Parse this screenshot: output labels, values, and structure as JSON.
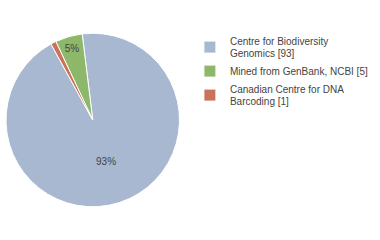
{
  "chart_data": {
    "type": "pie",
    "categories": [
      "Centre for Biodiversity\nGenomics [93]",
      "Mined from GenBank, NCBI [5]",
      "Canadian Centre for DNA\nBarcoding [1]"
    ],
    "values": [
      93,
      5,
      1
    ],
    "value_labels": [
      "93%",
      "5%",
      null
    ],
    "colors": [
      "#a8b8d0",
      "#8db86a",
      "#c8735a"
    ],
    "data_labels": true,
    "legend": "right"
  }
}
